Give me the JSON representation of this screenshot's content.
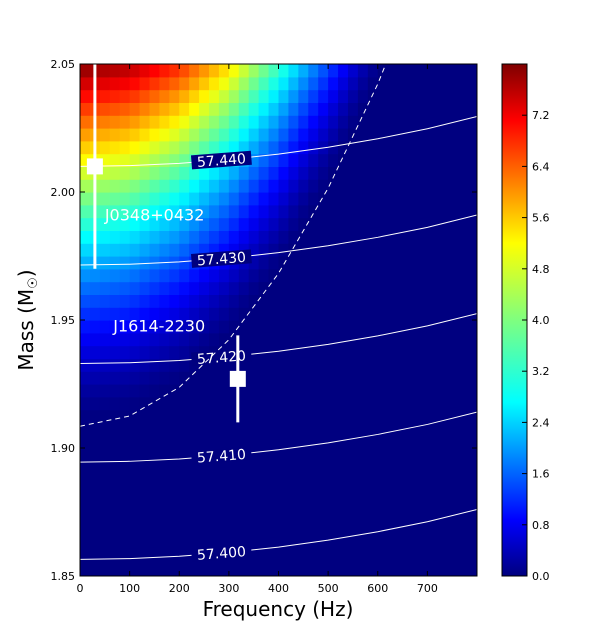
{
  "chart_data": {
    "type": "heatmap",
    "xlabel": "Frequency (Hz)",
    "ylabel": "Mass (M",
    "ylabel_sub": "☉",
    "xlim": [
      0,
      800
    ],
    "ylim": [
      1.85,
      2.05
    ],
    "x_ticks": [
      0,
      100,
      200,
      300,
      400,
      500,
      600,
      700
    ],
    "x_tick_labels": [
      "0",
      "100",
      "200",
      "300",
      "400",
      "500",
      "600",
      "700"
    ],
    "y_ticks": [
      1.85,
      1.9,
      1.95,
      2.0,
      2.05
    ],
    "y_tick_labels": [
      "1.85",
      "1.90",
      "1.95",
      "2.00",
      "2.05"
    ],
    "colorbar": {
      "colormap": "jet",
      "range": [
        0.0,
        8.0
      ],
      "ticks": [
        0.0,
        0.8,
        1.6,
        2.4,
        3.2,
        4.0,
        4.8,
        5.6,
        6.4,
        7.2
      ],
      "tick_labels": [
        "0.0",
        "0.8",
        "1.6",
        "2.4",
        "3.2",
        "4.0",
        "4.8",
        "5.6",
        "6.4",
        "7.2"
      ]
    },
    "grid": {
      "nx": 40,
      "ny": 40
    },
    "contours": [
      {
        "label": "57.400",
        "label_x": 285,
        "x": [
          0,
          100,
          200,
          300,
          400,
          500,
          600,
          700,
          800
        ],
        "y": [
          1.8565,
          1.8568,
          1.8577,
          1.8592,
          1.8613,
          1.864,
          1.8673,
          1.8712,
          1.876
        ]
      },
      {
        "label": "57.410",
        "label_x": 285,
        "x": [
          0,
          100,
          200,
          300,
          400,
          500,
          600,
          700,
          800
        ],
        "y": [
          1.8945,
          1.8948,
          1.8957,
          1.8972,
          1.8993,
          1.902,
          1.9053,
          1.9092,
          1.914
        ]
      },
      {
        "label": "57.420",
        "label_x": 285,
        "x": [
          0,
          100,
          200,
          300,
          400,
          500,
          600,
          700,
          800
        ],
        "y": [
          1.933,
          1.9333,
          1.9342,
          1.9357,
          1.9378,
          1.9405,
          1.9438,
          1.9477,
          1.9525
        ]
      },
      {
        "label": "57.430",
        "label_x": 285,
        "x": [
          0,
          100,
          200,
          300,
          400,
          500,
          600,
          700,
          800
        ],
        "y": [
          1.9715,
          1.9718,
          1.9727,
          1.9742,
          1.9763,
          1.979,
          1.9823,
          1.9862,
          1.991
        ]
      },
      {
        "label": "57.440",
        "label_x": 285,
        "x": [
          0,
          100,
          200,
          300,
          400,
          500,
          600,
          700,
          800
        ],
        "y": [
          2.01,
          2.0103,
          2.0112,
          2.0127,
          2.0148,
          2.0175,
          2.0208,
          2.0247,
          2.0295
        ]
      }
    ],
    "dashed_curve": {
      "x": [
        0,
        100,
        200,
        300,
        400,
        500,
        600,
        700,
        750
      ],
      "y": [
        1.9085,
        1.9125,
        1.9237,
        1.9423,
        1.9682,
        2.0015,
        2.0422,
        2.0902,
        2.1168
      ]
    },
    "pulsars": [
      {
        "name": "J0348+0432",
        "frequency": 30,
        "mass": 2.01,
        "mass_err_low": 0.04,
        "mass_err_high": 0.04,
        "label_x": 50,
        "label_y": 1.9888
      },
      {
        "name": "J1614-2230",
        "frequency": 318,
        "mass": 1.927,
        "mass_err_low": 0.017,
        "mass_err_high": 0.017,
        "label_x": 67,
        "label_y": 1.9455
      }
    ]
  }
}
